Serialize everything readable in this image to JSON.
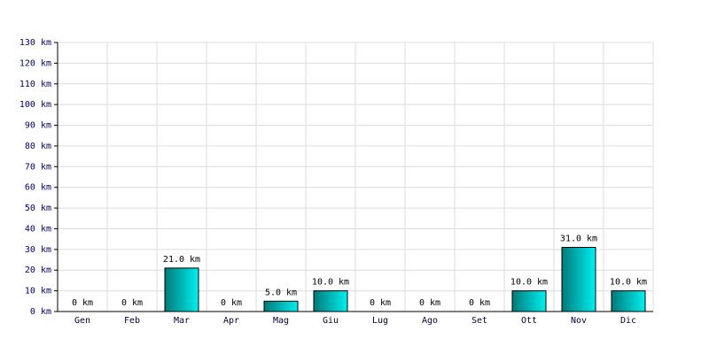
{
  "chart_data": {
    "type": "bar",
    "categories": [
      "Gen",
      "Feb",
      "Mar",
      "Apr",
      "Mag",
      "Giu",
      "Lug",
      "Ago",
      "Set",
      "Ott",
      "Nov",
      "Dic"
    ],
    "values": [
      0,
      0,
      21,
      0,
      5,
      10,
      0,
      0,
      0,
      10,
      31,
      10
    ],
    "value_labels": [
      "0 km",
      "0 km",
      "21.0 km",
      "0 km",
      "5.0 km",
      "10.0 km",
      "0 km",
      "0 km",
      "0 km",
      "10.0 km",
      "31.0 km",
      "10.0 km"
    ],
    "color": "#00f0f0",
    "ylim": [
      0,
      130
    ],
    "yticks": [
      {
        "value": 0,
        "label": "0 km"
      },
      {
        "value": 10,
        "label": "10 km"
      },
      {
        "value": 20,
        "label": "20 km"
      },
      {
        "value": 30,
        "label": "30 km"
      },
      {
        "value": 40,
        "label": "40 km"
      },
      {
        "value": 50,
        "label": "50 km"
      },
      {
        "value": 60,
        "label": "60 km"
      },
      {
        "value": 70,
        "label": "70 km"
      },
      {
        "value": 80,
        "label": "80 km"
      },
      {
        "value": 90,
        "label": "90 km"
      },
      {
        "value": 100,
        "label": "100 km"
      },
      {
        "value": 110,
        "label": "110 km"
      },
      {
        "value": 120,
        "label": "120 km"
      },
      {
        "value": 130,
        "label": "130 km"
      }
    ],
    "grid": true
  }
}
